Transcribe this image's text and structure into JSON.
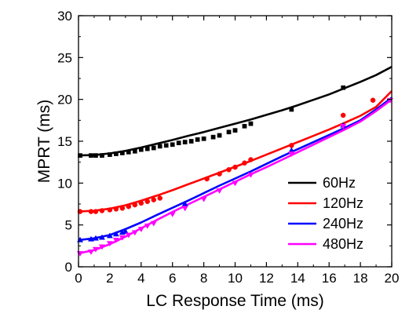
{
  "chart_data": {
    "type": "line",
    "title": "",
    "xlabel": "LC Response Time (ms)",
    "ylabel": "MPRT (ms)",
    "xlim": [
      0,
      20
    ],
    "ylim": [
      0,
      30
    ],
    "xticks": [
      "0",
      "2",
      "4",
      "6",
      "8",
      "10",
      "12",
      "14",
      "16",
      "18",
      "20"
    ],
    "yticks": [
      "0",
      "5",
      "10",
      "15",
      "20",
      "25",
      "30"
    ],
    "grid": false,
    "legend_position": "bottom-right",
    "series": [
      {
        "name": "60Hz",
        "color": "#000000",
        "marker": "square",
        "curve_x": [
          0,
          1,
          2,
          3,
          4,
          5,
          6,
          7,
          8,
          9,
          10,
          11,
          12,
          13,
          14,
          15,
          16,
          17,
          18,
          19,
          20
        ],
        "curve_y": [
          13.3,
          13.35,
          13.55,
          13.85,
          14.25,
          14.7,
          15.15,
          15.65,
          16.1,
          16.6,
          17.1,
          17.6,
          18.15,
          18.7,
          19.3,
          19.95,
          20.6,
          21.35,
          22.1,
          22.9,
          23.9
        ],
        "x": [
          0.1,
          0.8,
          1.1,
          1.5,
          2.0,
          2.4,
          2.8,
          3.2,
          3.6,
          4.0,
          4.4,
          4.8,
          5.2,
          5.6,
          6.0,
          6.4,
          6.8,
          7.2,
          7.6,
          8.0,
          8.6,
          9.0,
          9.6,
          10.0,
          10.6,
          11.0,
          13.6,
          16.9
        ],
        "y": [
          13.3,
          13.3,
          13.3,
          13.3,
          13.4,
          13.5,
          13.6,
          13.7,
          13.8,
          14.0,
          14.1,
          14.2,
          14.4,
          14.5,
          14.6,
          14.8,
          14.9,
          15.0,
          15.2,
          15.3,
          15.5,
          15.7,
          16.1,
          16.3,
          16.8,
          17.1,
          18.8,
          21.4
        ]
      },
      {
        "name": "120Hz",
        "color": "#ff0000",
        "marker": "circle",
        "curve_x": [
          0,
          1,
          2,
          3,
          4,
          5,
          6,
          7,
          8,
          9,
          10,
          11,
          12,
          13,
          14,
          15,
          16,
          17,
          18,
          19,
          20
        ],
        "curve_y": [
          6.6,
          6.7,
          6.95,
          7.35,
          7.9,
          8.5,
          9.15,
          9.85,
          10.55,
          11.25,
          11.95,
          12.65,
          13.4,
          14.15,
          14.9,
          15.65,
          16.4,
          17.2,
          18.05,
          19.1,
          21.0
        ],
        "x": [
          0.1,
          0.8,
          1.1,
          1.5,
          2.0,
          2.4,
          2.8,
          3.2,
          3.6,
          4.0,
          4.4,
          4.8,
          5.2,
          8.2,
          9.0,
          9.6,
          10.0,
          10.6,
          11.0,
          13.6,
          16.9,
          18.8
        ],
        "y": [
          6.6,
          6.6,
          6.6,
          6.7,
          6.8,
          6.9,
          7.0,
          7.2,
          7.4,
          7.6,
          7.8,
          8.0,
          8.2,
          10.5,
          11.1,
          11.6,
          11.9,
          12.4,
          12.8,
          14.5,
          18.1,
          19.9
        ]
      },
      {
        "name": "240Hz",
        "color": "#0000ff",
        "marker": "triangle-up",
        "curve_x": [
          0,
          1,
          2,
          3,
          4,
          5,
          6,
          7,
          8,
          9,
          10,
          11,
          12,
          13,
          14,
          15,
          16,
          17,
          18,
          19,
          20
        ],
        "curve_y": [
          3.2,
          3.4,
          3.8,
          4.5,
          5.3,
          6.2,
          7.05,
          7.9,
          8.8,
          9.7,
          10.55,
          11.4,
          12.3,
          13.2,
          14.05,
          14.9,
          15.75,
          16.6,
          17.5,
          18.8,
          20.2
        ],
        "x": [
          0.1,
          0.8,
          1.1,
          1.5,
          2.0,
          2.4,
          2.8,
          3.0,
          6.8,
          13.6,
          16.9
        ],
        "y": [
          3.2,
          3.3,
          3.4,
          3.5,
          3.7,
          3.9,
          4.1,
          4.2,
          7.5,
          13.9,
          16.9
        ]
      },
      {
        "name": "480Hz",
        "color": "#ff00ff",
        "marker": "triangle-down",
        "curve_x": [
          0,
          1,
          2,
          3,
          4,
          5,
          6,
          7,
          8,
          9,
          10,
          11,
          12,
          13,
          14,
          15,
          16,
          17,
          18,
          19,
          20
        ],
        "curve_y": [
          1.6,
          2.0,
          2.7,
          3.6,
          4.6,
          5.6,
          6.55,
          7.45,
          8.35,
          9.25,
          10.15,
          11.05,
          11.9,
          12.8,
          13.7,
          14.6,
          15.5,
          16.4,
          17.35,
          18.6,
          20.0
        ],
        "x": [
          0.1,
          0.8,
          1.1,
          1.5,
          2.0,
          2.4,
          2.8,
          3.2,
          3.6,
          4.0,
          4.4,
          4.8,
          6.0,
          6.8,
          8.0,
          9.0,
          10.0,
          11.0,
          13.6,
          16.9,
          19.9
        ],
        "y": [
          1.6,
          1.8,
          2.1,
          2.4,
          2.8,
          3.2,
          3.5,
          3.8,
          4.1,
          4.5,
          4.9,
          5.2,
          6.3,
          7.0,
          8.1,
          9.1,
          10.0,
          11.0,
          13.5,
          16.8,
          19.9
        ]
      }
    ]
  }
}
